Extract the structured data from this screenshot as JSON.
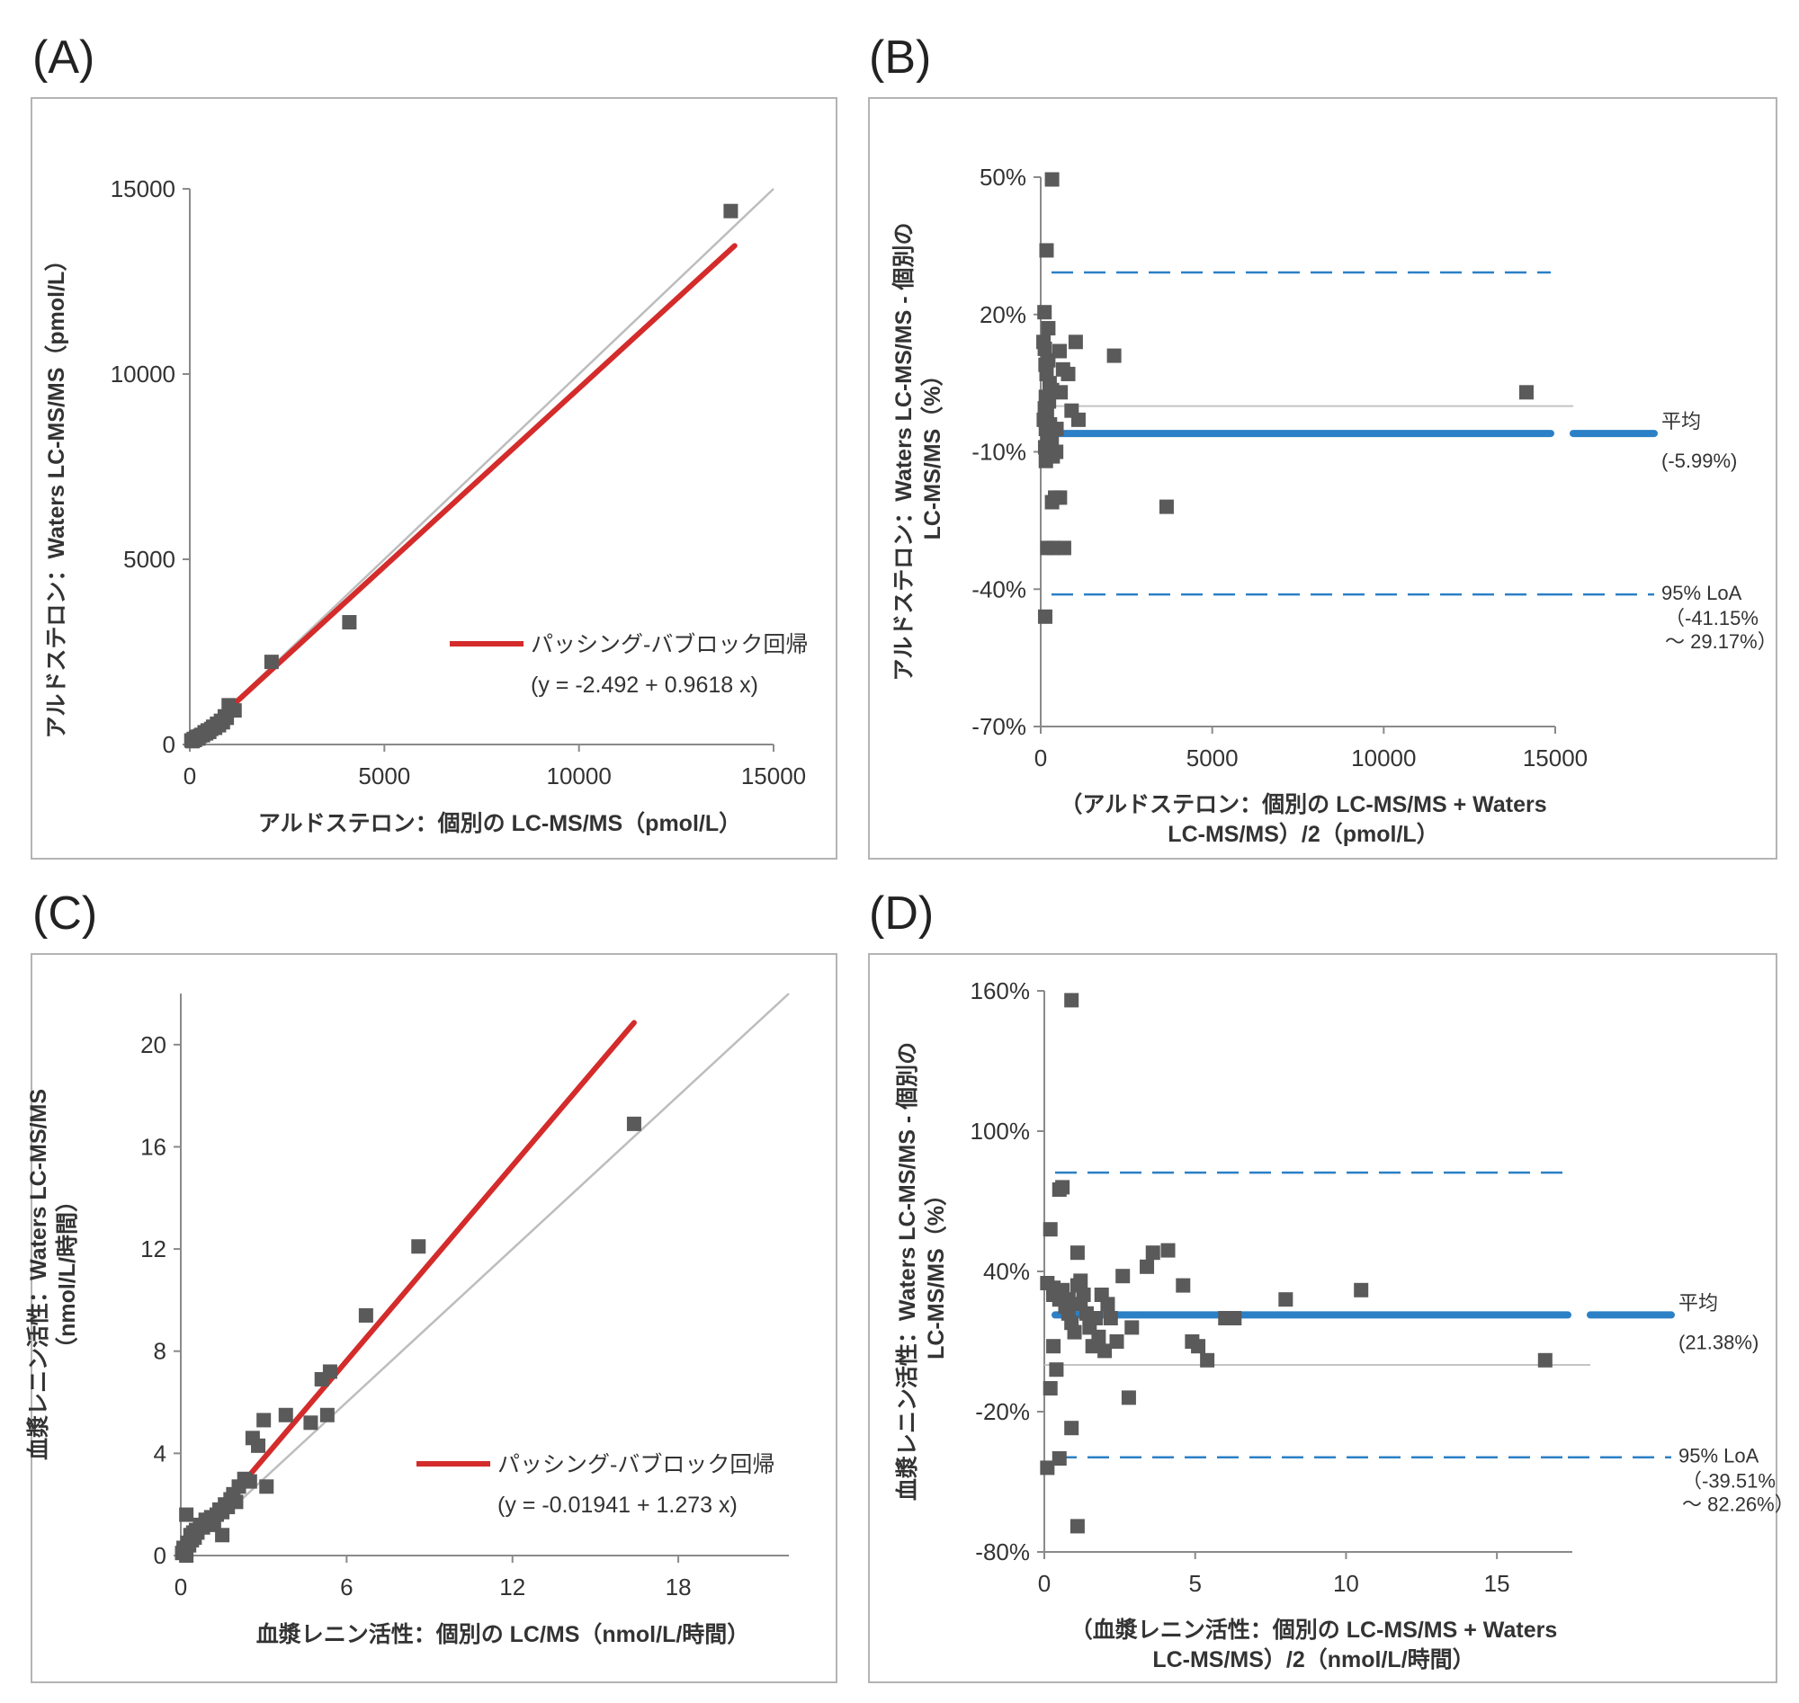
{
  "panels": [
    {
      "letter": "(A)",
      "chart": {
        "type": "scatter",
        "title": "",
        "xlabel": "アルドステロン：個別の LC-MS/MS（pmol/L）",
        "ylabel": "アルドステロン：Waters LC-MS/MS（pmol/L）",
        "xlim": [
          0,
          15000
        ],
        "ylim": [
          0,
          15000
        ],
        "xticks": [
          0,
          5000,
          10000,
          15000
        ],
        "yticks": [
          0,
          5000,
          10000,
          15000
        ],
        "xtick_labels": [
          "0",
          "5000",
          "10000",
          "15000"
        ],
        "ytick_labels": [
          "0",
          "5000",
          "10000",
          "15000"
        ],
        "identity_line": [
          [
            0,
            0
          ],
          [
            15000,
            15000
          ]
        ],
        "regression": {
          "from": [
            1000,
            959
          ],
          "to": [
            14000,
            13463
          ]
        },
        "legend": {
          "label": "パッシング-バブロック回帰",
          "equation": "(y = -2.492 + 0.9618 x)",
          "placement": "lower-right"
        },
        "series": [
          {
            "name": "samples",
            "x": [
              40,
              70,
              100,
              130,
              160,
              190,
              220,
              260,
              300,
              340,
              380,
              420,
              460,
              500,
              550,
              600,
              650,
              700,
              750,
              800,
              850,
              900,
              950,
              1000,
              1150,
              2100,
              4100,
              13900
            ],
            "y": [
              110,
              90,
              150,
              120,
              180,
              210,
              160,
              230,
              260,
              250,
              330,
              300,
              380,
              340,
              420,
              480,
              450,
              560,
              520,
              640,
              600,
              760,
              720,
              1060,
              920,
              2230,
              3300,
              14400
            ]
          }
        ]
      }
    },
    {
      "letter": "(B)",
      "chart": {
        "type": "scatter",
        "title": "",
        "xlabel_lines": [
          "（アルドステロン：個別の LC-MS/MS + Waters",
          "LC-MS/MS）/2（pmol/L）"
        ],
        "ylabel_lines": [
          "アルドステロン：Waters LC-MS/MS - 個別の",
          "LC-MS/MS（%）"
        ],
        "xlim": [
          0,
          15000
        ],
        "ylim": [
          -70,
          50
        ],
        "xticks": [
          0,
          5000,
          10000,
          15000
        ],
        "yticks": [
          -70,
          -40,
          -10,
          20,
          50
        ],
        "xtick_labels": [
          "0",
          "5000",
          "10000",
          "15000"
        ],
        "ytick_labels": [
          "-70%",
          "-40%",
          "-10%",
          "20%",
          "50%"
        ],
        "zero_line": 0,
        "mean_line": {
          "value": -5.99,
          "label": "平均",
          "value_label": "(-5.99%)"
        },
        "loa": {
          "upper": 29.17,
          "lower": -41.15,
          "label": "95% LoA",
          "range_line1": "（-41.15%",
          "range_line2": "～ 29.17%）"
        },
        "series": [
          {
            "name": "differences",
            "x": [
              330,
              170,
              110,
              220,
              80,
              120,
              220,
              140,
              170,
              260,
              330,
              150,
              240,
              120,
              180,
              90,
              270,
              150,
              200,
              320,
              250,
              130,
              280,
              350,
              150,
              550,
              650,
              800,
              900,
              1020,
              1100,
              2140,
              3670,
              420,
              560,
              680,
              330,
              450,
              460,
              580,
              360,
              200,
              130,
              14160
            ],
            "y": [
              49.5,
              34,
              20.5,
              17,
              14,
              12.5,
              10,
              9,
              7,
              5,
              3.5,
              2,
              1,
              -0.5,
              -2,
              -3,
              -4,
              -5,
              -6,
              -7,
              -8,
              -9,
              -10,
              -11,
              -12,
              12,
              8,
              7,
              -1,
              14,
              -3,
              11,
              -22,
              -20,
              -20,
              -31,
              -21,
              -10,
              -5,
              3,
              -31,
              -31,
              -46,
              3
            ]
          }
        ]
      }
    },
    {
      "letter": "(C)",
      "chart": {
        "type": "scatter",
        "title": "",
        "xlabel": "血漿レニン活性：個別の LC/MS（nmol/L/時間）",
        "ylabel_lines": [
          "血漿レニン活性：Waters LC-MS/MS",
          "（nmol/L/時間）"
        ],
        "xlim": [
          0,
          22
        ],
        "ylim": [
          0,
          22
        ],
        "xticks": [
          0,
          6,
          12,
          18
        ],
        "yticks": [
          0,
          4,
          8,
          12,
          16,
          20
        ],
        "xtick_labels": [
          "0",
          "6",
          "12",
          "18"
        ],
        "ytick_labels": [
          "0",
          "4",
          "8",
          "12",
          "16",
          "20"
        ],
        "identity_line": [
          [
            0,
            0
          ],
          [
            22,
            22
          ]
        ],
        "regression": {
          "from": [
            1.6,
            2.02
          ],
          "to": [
            16.4,
            20.86
          ]
        },
        "legend": {
          "label": "パッシング-バブロック回帰",
          "equation": "(y = -0.01941 + 1.273 x)",
          "placement": "lower-right"
        },
        "series": [
          {
            "name": "samples",
            "x": [
              0.05,
              0.1,
              0.15,
              0.2,
              0.25,
              0.3,
              0.35,
              0.4,
              0.45,
              0.5,
              0.55,
              0.6,
              0.7,
              0.8,
              0.9,
              1.0,
              1.1,
              1.2,
              1.3,
              1.4,
              1.5,
              1.6,
              1.7,
              1.8,
              1.9,
              2.0,
              2.1,
              2.3,
              2.5,
              2.6,
              2.8,
              3.0,
              3.1,
              3.8,
              4.7,
              5.1,
              5.3,
              5.4,
              6.7,
              8.6,
              16.4,
              0.2,
              1.5
            ],
            "y": [
              0.1,
              0.3,
              0.2,
              1.6,
              0.5,
              0.4,
              0.8,
              0.6,
              0.9,
              0.7,
              1.0,
              0.9,
              1.2,
              1.1,
              1.4,
              1.3,
              1.5,
              1.2,
              1.6,
              1.8,
              1.7,
              2.0,
              1.9,
              2.2,
              2.4,
              2.1,
              2.7,
              3.0,
              2.9,
              4.6,
              4.3,
              5.3,
              2.7,
              5.5,
              5.2,
              6.9,
              5.5,
              7.2,
              9.4,
              12.1,
              16.9,
              0.0,
              0.8
            ]
          }
        ]
      }
    },
    {
      "letter": "(D)",
      "chart": {
        "type": "scatter",
        "title": "",
        "xlabel_lines": [
          "（血漿レニン活性：個別の LC-MS/MS + Waters",
          "LC-MS/MS）/2（nmol/L/時間）"
        ],
        "ylabel_lines": [
          "血漿レニン活性：Waters LC-MS/MS - 個別の",
          "LC-MS/MS（%）"
        ],
        "xlim": [
          0,
          17.5
        ],
        "ylim": [
          -80,
          160
        ],
        "xticks": [
          0,
          5,
          10,
          15
        ],
        "yticks": [
          -80,
          -20,
          40,
          100,
          160
        ],
        "xtick_labels": [
          "0",
          "5",
          "10",
          "15"
        ],
        "ytick_labels": [
          "-80%",
          "-20%",
          "40%",
          "100%",
          "160%"
        ],
        "zero_line": 0,
        "mean_line": {
          "value": 21.38,
          "label": "平均",
          "value_label": "(21.38%)"
        },
        "loa": {
          "upper": 82.26,
          "lower": -39.51,
          "label": "95% LoA",
          "range_line1": "（-39.51%",
          "range_line2": "～ 82.26%）"
        },
        "series": [
          {
            "name": "differences",
            "x": [
              0.9,
              0.5,
              0.6,
              0.2,
              0.3,
              1.1,
              1.2,
              0.8,
              0.1,
              0.3,
              0.5,
              0.6,
              0.7,
              0.8,
              0.9,
              1.0,
              1.1,
              1.2,
              1.3,
              1.4,
              1.5,
              1.6,
              1.7,
              1.8,
              1.9,
              2.0,
              2.1,
              2.2,
              2.4,
              2.6,
              2.8,
              2.9,
              3.4,
              3.6,
              4.1,
              4.6,
              4.9,
              5.1,
              5.4,
              6.0,
              6.3,
              8.0,
              10.5,
              16.6,
              0.3,
              0.4,
              0.2,
              0.9,
              0.5,
              0.1,
              1.1
            ],
            "y": [
              156,
              75,
              76,
              58,
              30,
              48,
              36,
              28,
              35,
              33,
              28,
              32,
              25,
              22,
              18,
              14,
              34,
              26,
              30,
              22,
              16,
              8,
              20,
              12,
              30,
              6,
              26,
              20,
              10,
              38,
              -14,
              16,
              42,
              48,
              49,
              34,
              10,
              8,
              2,
              20,
              20,
              28,
              32,
              2,
              8,
              -2,
              -10,
              -27,
              -40,
              -44,
              -69
            ]
          }
        ]
      }
    }
  ]
}
